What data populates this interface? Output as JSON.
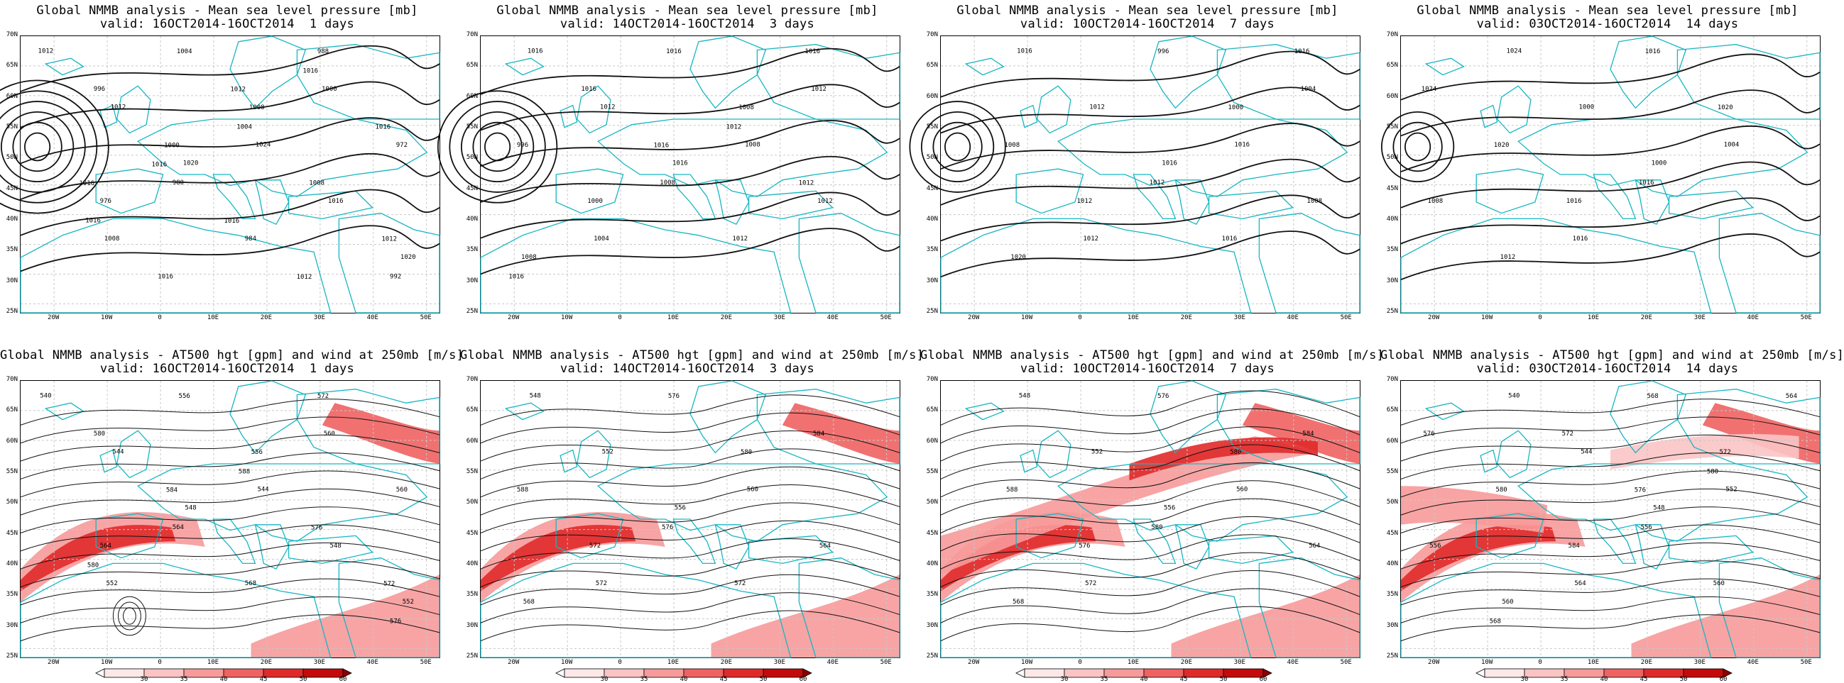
{
  "colors": {
    "land": "#16b6c2",
    "contour": "#111111",
    "grid": "#c8c8c8",
    "jet": [
      "#fde8e8",
      "#fbc4c4",
      "#f79a9a",
      "#ef6262",
      "#e02a2a",
      "#c40a0a",
      "#8a0000"
    ]
  },
  "lat_labels": [
    "70N",
    "65N",
    "60N",
    "55N",
    "50N",
    "45N",
    "40N",
    "35N",
    "30N",
    "25N"
  ],
  "lon_labels": [
    "20W",
    "10W",
    "0",
    "10E",
    "20E",
    "30E",
    "40E",
    "50E"
  ],
  "colorbar": {
    "ticks": [
      "30",
      "35",
      "40",
      "45",
      "50",
      "60"
    ]
  },
  "panels": [
    {
      "title": "Global NMMB analysis - Mean sea level pressure [mb]",
      "valid": "valid: 16OCT2014-16OCT2014  1 days",
      "kind": "mslp",
      "labels": [
        "1012",
        "1012",
        "1020",
        "1024",
        "1016",
        "1020",
        "1008",
        "1004",
        "1008",
        "1000",
        "972",
        "976",
        "980",
        "984",
        "988",
        "992",
        "996",
        "1000",
        "1004",
        "1008",
        "1012",
        "1016",
        "1016",
        "1012",
        "1016",
        "1016",
        "1016",
        "1016",
        "1016",
        "1012"
      ]
    },
    {
      "title": "Global NMMB analysis - Mean sea level pressure [mb]",
      "valid": "valid: 14OCT2014-16OCT2014  3 days",
      "kind": "mslp",
      "labels": [
        "1016",
        "1012",
        "1016",
        "1008",
        "1012",
        "1008",
        "1004",
        "1016",
        "1008",
        "1012",
        "996",
        "1000",
        "1008",
        "1012",
        "1016",
        "1016",
        "1016",
        "1016",
        "1012",
        "1012"
      ]
    },
    {
      "title": "Global NMMB analysis - Mean sea level pressure [mb]",
      "valid": "valid: 10OCT2014-16OCT2014  7 days",
      "kind": "mslp",
      "labels": [
        "1016",
        "1012",
        "1016",
        "1016",
        "1008",
        "1020",
        "1012",
        "996",
        "1000",
        "1004",
        "1008",
        "1012",
        "1012",
        "1016",
        "1016"
      ]
    },
    {
      "title": "Global NMMB analysis - Mean sea level pressure [mb]",
      "valid": "valid: 03OCT2014-16OCT2014  14 days",
      "kind": "mslp",
      "labels": [
        "1024",
        "1000",
        "1000",
        "1004",
        "1008",
        "1012",
        "1016",
        "1016",
        "1020",
        "1024",
        "1020",
        "1016",
        "1016"
      ]
    },
    {
      "title": "Global NMMB analysis - AT500 hgt [gpm] and wind at 250mb [m/s]",
      "valid": "valid: 16OCT2014-16OCT2014  1 days",
      "kind": "z500",
      "labels": [
        "540",
        "544",
        "548",
        "544",
        "548",
        "552",
        "552",
        "556",
        "556",
        "560",
        "560",
        "564",
        "564",
        "568",
        "572",
        "576",
        "580",
        "584",
        "588",
        "576",
        "572",
        "580"
      ]
    },
    {
      "title": "Global NMMB analysis - AT500 hgt [gpm] and wind at 250mb [m/s]",
      "valid": "valid: 14OCT2014-16OCT2014  3 days",
      "kind": "z500",
      "labels": [
        "548",
        "552",
        "556",
        "560",
        "564",
        "568",
        "572",
        "576",
        "580",
        "584",
        "588",
        "572",
        "576",
        "572"
      ]
    },
    {
      "title": "Global NMMB analysis - AT500 hgt [gpm] and wind at 250mb [m/s]",
      "valid": "valid: 10OCT2014-16OCT2014  7 days",
      "kind": "z500",
      "labels": [
        "548",
        "552",
        "556",
        "560",
        "564",
        "568",
        "572",
        "576",
        "580",
        "584",
        "588",
        "576",
        "580"
      ]
    },
    {
      "title": "Global NMMB analysis - AT500 hgt [gpm] and wind at 250mb [m/s]",
      "valid": "valid: 03OCT2014-16OCT2014  14 days",
      "kind": "z500",
      "labels": [
        "540",
        "544",
        "548",
        "552",
        "556",
        "560",
        "564",
        "568",
        "572",
        "576",
        "580",
        "584",
        "556",
        "560",
        "564",
        "568",
        "572",
        "576",
        "580"
      ]
    }
  ]
}
